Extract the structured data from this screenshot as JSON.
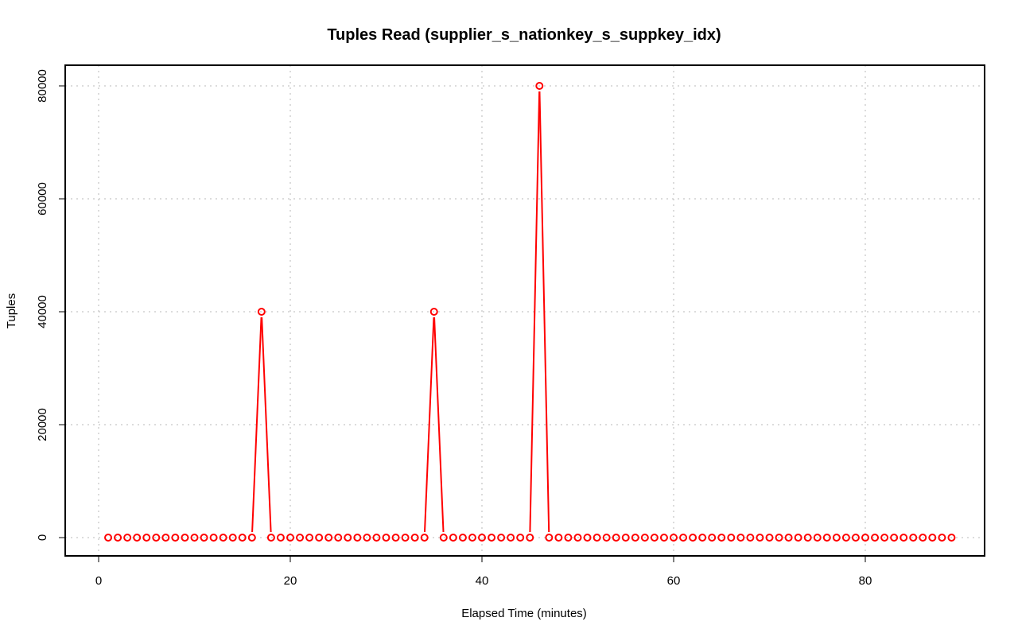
{
  "chart_data": {
    "type": "line",
    "title": "Tuples Read (supplier_s_nationkey_s_suppkey_idx)",
    "xlabel": "Elapsed Time (minutes)",
    "ylabel": "Tuples",
    "xlim": [
      -3.5,
      93
    ],
    "ylim": [
      -3200,
      83000
    ],
    "x_ticks": [
      0,
      20,
      40,
      60,
      80
    ],
    "y_ticks": [
      0,
      20000,
      40000,
      60000,
      80000
    ],
    "grid": true,
    "series": [
      {
        "color": "#ff0000",
        "marker": "open-circle",
        "x": [
          1,
          2,
          3,
          4,
          5,
          6,
          7,
          8,
          9,
          10,
          11,
          12,
          13,
          14,
          15,
          16,
          17,
          18,
          19,
          20,
          21,
          22,
          23,
          24,
          25,
          26,
          27,
          28,
          29,
          30,
          31,
          32,
          33,
          34,
          35,
          36,
          37,
          38,
          39,
          40,
          41,
          42,
          43,
          44,
          45,
          46,
          47,
          48,
          49,
          50,
          51,
          52,
          53,
          54,
          55,
          56,
          57,
          58,
          59,
          60,
          61,
          62,
          63,
          64,
          65,
          66,
          67,
          68,
          69,
          70,
          71,
          72,
          73,
          74,
          75,
          76,
          77,
          78,
          79,
          80,
          81,
          82,
          83,
          84,
          85,
          86,
          87,
          88,
          89
        ],
        "values": [
          0,
          0,
          0,
          0,
          0,
          0,
          0,
          0,
          0,
          0,
          0,
          0,
          0,
          0,
          0,
          0,
          40000,
          0,
          0,
          0,
          0,
          0,
          0,
          0,
          0,
          0,
          0,
          0,
          0,
          0,
          0,
          0,
          0,
          0,
          40000,
          0,
          0,
          0,
          0,
          0,
          0,
          0,
          0,
          0,
          0,
          80000,
          0,
          0,
          0,
          0,
          0,
          0,
          0,
          0,
          0,
          0,
          0,
          0,
          0,
          0,
          0,
          0,
          0,
          0,
          0,
          0,
          0,
          0,
          0,
          0,
          0,
          0,
          0,
          0,
          0,
          0,
          0,
          0,
          0,
          0,
          0,
          0,
          0,
          0,
          0,
          0,
          0,
          0,
          0
        ]
      }
    ]
  }
}
